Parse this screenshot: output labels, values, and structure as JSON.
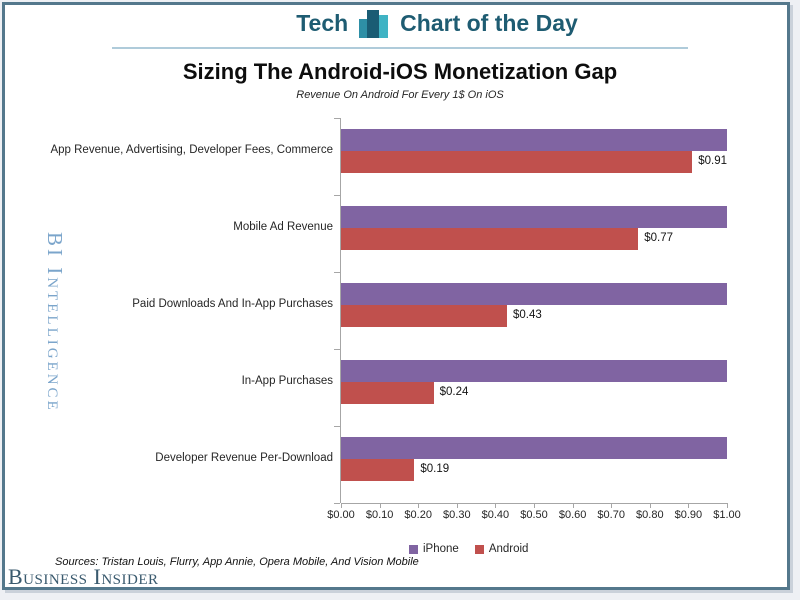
{
  "frame": {
    "border_color": "#54788C"
  },
  "header": {
    "brand": "Tech",
    "title": "Chart of the Day",
    "text_color": "#1E5C72",
    "icon": "bar-chart-icon",
    "icon_colors": [
      "#2E8FA6",
      "#1A5C74",
      "#3FB3C4"
    ],
    "underline_color": "#AFCBDA"
  },
  "chart_data": {
    "type": "bar",
    "orientation": "horizontal",
    "title": "Sizing The Android-iOS Monetization Gap",
    "subtitle": "Revenue On Android For Every 1$ On iOS",
    "categories": [
      "App Revenue, Advertising, Developer Fees, Commerce",
      "Mobile Ad Revenue",
      "Paid Downloads And In-App Purchases",
      "In-App Purchases",
      "Developer Revenue Per-Download"
    ],
    "series": [
      {
        "name": "iPhone",
        "color": "#8064A2",
        "values": [
          1.0,
          1.0,
          1.0,
          1.0,
          1.0
        ]
      },
      {
        "name": "Android",
        "color": "#C0504D",
        "values": [
          0.91,
          0.77,
          0.43,
          0.24,
          0.19
        ]
      }
    ],
    "data_labels": [
      "$0.91",
      "$0.77",
      "$0.43",
      "$0.24",
      "$0.19"
    ],
    "xlim": [
      0,
      1
    ],
    "x_tick_labels": [
      "$0.00",
      "$0.10",
      "$0.20",
      "$0.30",
      "$0.40",
      "$0.50",
      "$0.60",
      "$0.70",
      "$0.80",
      "$0.90",
      "$1.00"
    ],
    "legend_position": "bottom",
    "grid": false,
    "axis_color": "#A6A6A6",
    "label_color": "#262626"
  },
  "watermark": {
    "text": "BI Intelligence",
    "color": "#7BA5CB"
  },
  "footer": {
    "sources": "Sources: Tristan Louis, Flurry, App Annie, Opera Mobile, And Vision Mobile",
    "logo": "Business Insider",
    "logo_color": "#3A5A6E"
  }
}
